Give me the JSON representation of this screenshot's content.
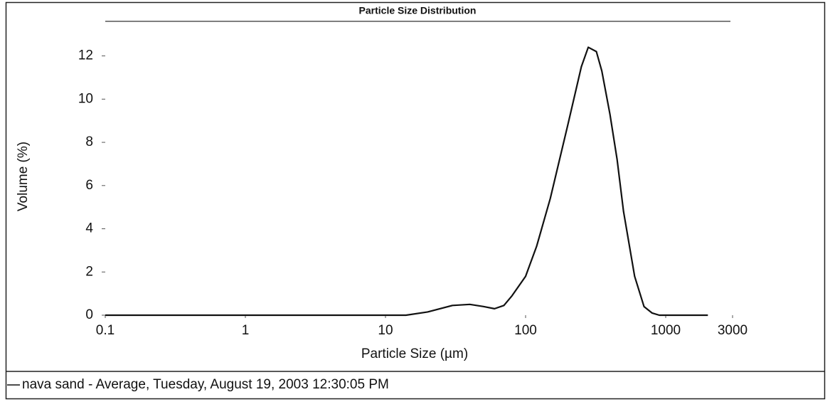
{
  "chart_data": {
    "type": "line",
    "title": "Particle Size Distribution",
    "x_label": "Particle Size (µm)",
    "y_label": "Volume (%)",
    "x_scale": "log",
    "x": [
      0.1,
      1,
      10,
      14,
      20,
      30,
      40,
      50,
      60,
      70,
      80,
      100,
      120,
      150,
      200,
      250,
      280,
      320,
      350,
      400,
      450,
      500,
      600,
      700,
      800,
      900,
      1000,
      2000
    ],
    "series": [
      {
        "name": "nava sand - Average, Tuesday, August 19, 2003 12:30:05 PM",
        "color": "#111111",
        "values": [
          0,
          0,
          0,
          0,
          0.15,
          0.45,
          0.5,
          0.4,
          0.3,
          0.45,
          0.9,
          1.8,
          3.2,
          5.4,
          8.8,
          11.5,
          12.4,
          12.2,
          11.3,
          9.3,
          7.2,
          4.8,
          1.8,
          0.4,
          0.1,
          0,
          0,
          0
        ]
      }
    ],
    "xlim": [
      0.1,
      3000
    ],
    "xticks": [
      0.1,
      1,
      10,
      100,
      1000,
      3000
    ],
    "ylim": [
      0,
      13.6
    ],
    "yticks": [
      0,
      2,
      4,
      6,
      8,
      10,
      12
    ]
  }
}
